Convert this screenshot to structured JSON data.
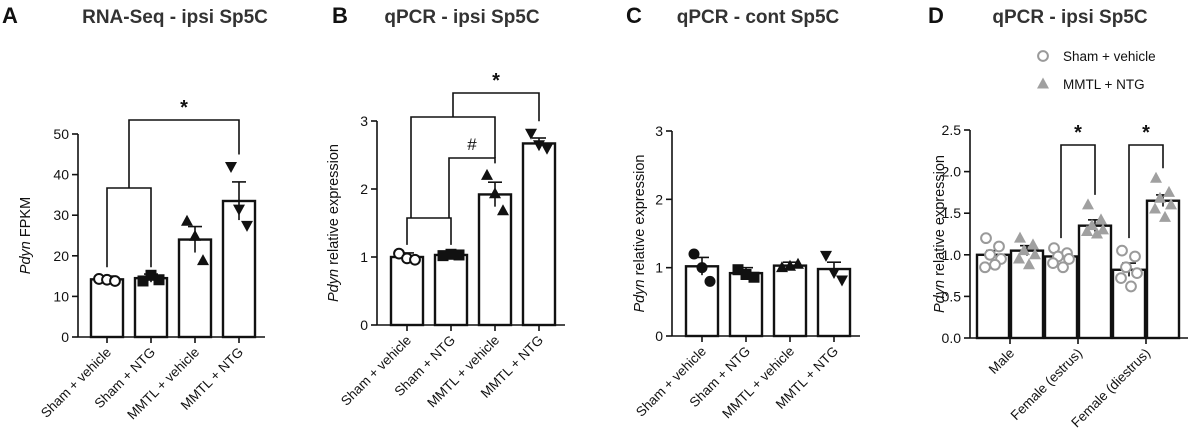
{
  "colors": {
    "axis": "#111111",
    "bar_fill": "#ffffff",
    "marker_dark": "#111111",
    "marker_sham": "#9a9a9a",
    "marker_mmtl": "#a0a0a0"
  },
  "legend": {
    "items": [
      {
        "label": "Sham + vehicle",
        "marker": "open-circle"
      },
      {
        "label": "MMTL + NTG",
        "marker": "filled-triangle"
      }
    ],
    "placement": "top-right of panel D"
  },
  "chart_data": [
    {
      "panel": "A",
      "type": "bar",
      "title": "RNA-Seq - ipsi Sp5C",
      "ylabel_italic": "Pdyn",
      "ylabel_rest": " FPKM",
      "ylim": [
        0,
        50
      ],
      "yticks": [
        0,
        10,
        20,
        30,
        40,
        50
      ],
      "categories": [
        "Sham + vehicle",
        "Sham + NTG",
        "MMTL + vehicle",
        "MMTL + NTG"
      ],
      "values": [
        14.2,
        14.5,
        24.0,
        33.5
      ],
      "errors": [
        0.8,
        1.0,
        3.2,
        4.7
      ],
      "markers": [
        "open-circle",
        "filled-square",
        "filled-triangle",
        "filled-triangle-down"
      ],
      "points": [
        [
          14.3,
          14.1,
          13.8
        ],
        [
          13.8,
          15.2,
          14.1
        ],
        [
          28.5,
          24.8,
          18.8
        ],
        [
          42.0,
          31.5,
          27.5
        ]
      ],
      "significance": [
        {
          "symbol": "*",
          "from_group": [
            0,
            1
          ],
          "to": 3
        }
      ]
    },
    {
      "panel": "B",
      "type": "bar",
      "title": "qPCR - ipsi Sp5C",
      "ylabel_italic": "Pdyn",
      "ylabel_rest": " relative expression",
      "ylim": [
        0,
        3
      ],
      "yticks": [
        0,
        1,
        2,
        3
      ],
      "categories": [
        "Sham + vehicle",
        "Sham + NTG",
        "MMTL + vehicle",
        "MMTL + NTG"
      ],
      "values": [
        1.0,
        1.03,
        1.92,
        2.67
      ],
      "errors": [
        0.06,
        0.02,
        0.18,
        0.08
      ],
      "markers": [
        "open-circle",
        "filled-square",
        "filled-triangle",
        "filled-triangle-down"
      ],
      "points": [
        [
          1.05,
          0.98,
          0.96
        ],
        [
          1.02,
          1.04,
          1.03
        ],
        [
          2.2,
          1.93,
          1.68
        ],
        [
          2.82,
          2.65,
          2.6
        ]
      ],
      "significance": [
        {
          "symbol": "#",
          "from_group": [
            0,
            1
          ],
          "to": 2
        },
        {
          "symbol": "*",
          "from_group": [
            0,
            1
          ],
          "to": 3
        }
      ]
    },
    {
      "panel": "C",
      "type": "bar",
      "title": "qPCR - cont Sp5C",
      "ylabel_italic": "Pdyn",
      "ylabel_rest": " relative expression",
      "ylim": [
        0,
        3
      ],
      "yticks": [
        0,
        1,
        2,
        3
      ],
      "categories": [
        "Sham + vehicle",
        "Sham + NTG",
        "MMTL + vehicle",
        "MMTL + NTG"
      ],
      "values": [
        1.02,
        0.92,
        1.03,
        0.98
      ],
      "errors": [
        0.13,
        0.08,
        0.05,
        0.1
      ],
      "markers": [
        "filled-circle",
        "filled-square",
        "filled-triangle",
        "filled-triangle-down"
      ],
      "points": [
        [
          1.2,
          1.0,
          0.8
        ],
        [
          0.97,
          0.9,
          0.86
        ],
        [
          1.0,
          1.02,
          1.05
        ],
        [
          1.18,
          0.93,
          0.82
        ]
      ],
      "significance": []
    },
    {
      "panel": "D",
      "type": "bar",
      "title": "qPCR - ipsi Sp5C",
      "ylabel_italic": "Pdyn",
      "ylabel_rest": " relative expression",
      "ylim": [
        0,
        2.5
      ],
      "yticks": [
        "0.0",
        "0.5",
        "1.0",
        "1.5",
        "2.0",
        "2.5"
      ],
      "categories": [
        "Male",
        "Female (estrus)",
        "Female (diestrus)"
      ],
      "series": [
        {
          "label": "Sham + vehicle",
          "marker": "open-circle",
          "values": [
            1.0,
            0.98,
            0.82
          ],
          "errors": [
            0.05,
            0.05,
            0.08
          ],
          "points": [
            [
              1.2,
              1.1,
              1.0,
              0.95,
              0.85,
              0.88
            ],
            [
              1.08,
              1.02,
              0.98,
              0.95,
              0.9,
              0.85
            ],
            [
              1.05,
              0.98,
              0.85,
              0.78,
              0.72,
              0.62
            ]
          ]
        },
        {
          "label": "MMTL + NTG",
          "marker": "filled-triangle",
          "values": [
            1.05,
            1.35,
            1.65
          ],
          "errors": [
            0.06,
            0.07,
            0.07
          ],
          "points": [
            [
              1.2,
              1.12,
              1.05,
              1.0,
              0.95,
              0.88
            ],
            [
              1.6,
              1.42,
              1.35,
              1.3,
              1.28,
              1.25
            ],
            [
              1.92,
              1.75,
              1.68,
              1.6,
              1.55,
              1.45
            ]
          ]
        }
      ],
      "significance": [
        {
          "symbol": "*",
          "category": 1
        },
        {
          "symbol": "*",
          "category": 2
        }
      ]
    }
  ]
}
